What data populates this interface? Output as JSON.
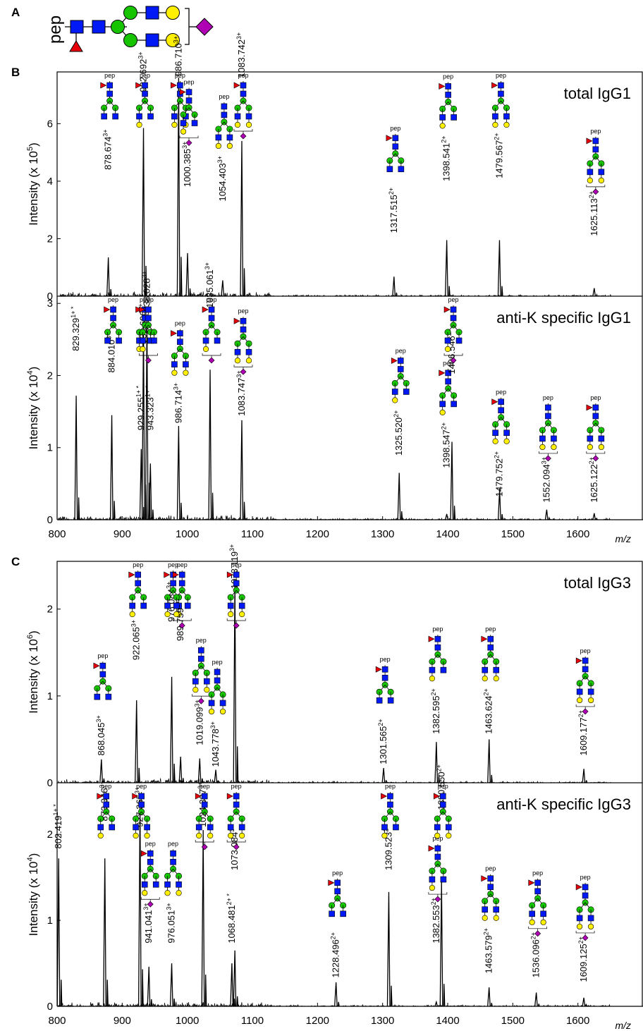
{
  "panel_letters": {
    "a": "A",
    "b": "B",
    "c": "C"
  },
  "legend_glycan": {
    "pep_label": "pep"
  },
  "colors": {
    "gn": "#0019f5",
    "man": "#17c400",
    "gal": "#ffef00",
    "fuc": "#e8000b",
    "sia": "#b000b5",
    "dash": "#3d8fd8",
    "line": "#000000"
  },
  "axes": {
    "x_label": "m/z",
    "pep": "pep"
  },
  "chart_data": [
    {
      "type": "line",
      "title": "total IgG1",
      "ylabel": "Intensity (x 10^5)",
      "ylabel_base": "Intensity (x 10",
      "ylabel_exp": "5",
      "ylabel_end": ")",
      "ylim": [
        0,
        7.8
      ],
      "yticks": [
        "0",
        "2",
        "4",
        "6"
      ],
      "xlim": [
        800,
        1700
      ],
      "xticks": [
        "800",
        "900",
        "1000",
        "1100",
        "1200",
        "1300",
        "1400",
        "1500",
        "1600"
      ],
      "peaks": [
        {
          "x": 878.674,
          "y": 1.35,
          "label": "878.674",
          "charge": "3+",
          "ly": 4.3,
          "glycan": "G0F"
        },
        {
          "x": 932.692,
          "y": 5.85,
          "label": "932.692",
          "charge": "3+",
          "ly": 7.0,
          "glycan": "G1F"
        },
        {
          "x": 986.71,
          "y": 7.6,
          "label": "986.710",
          "charge": "3+",
          "ly": 7.55,
          "glycan": "G2F"
        },
        {
          "x": 1000.385,
          "y": 1.5,
          "label": "1000.385",
          "charge": "3+",
          "ly": 3.7,
          "glycan": "G1FS"
        },
        {
          "x": 1054.403,
          "y": 0.55,
          "label": "1054.403",
          "charge": "3+",
          "ly": 3.2,
          "glycan": "G2"
        },
        {
          "x": 1083.742,
          "y": 5.4,
          "label": "1083.742",
          "charge": "3+",
          "ly": 7.5,
          "glycan": "G2FS"
        },
        {
          "x": 1317.515,
          "y": 0.68,
          "label": "1317.515",
          "charge": "2+",
          "ly": 2.1,
          "glycan": "G0F"
        },
        {
          "x": 1398.541,
          "y": 1.95,
          "label": "1398.541",
          "charge": "2+",
          "ly": 3.9,
          "glycan": "G1F"
        },
        {
          "x": 1479.567,
          "y": 1.95,
          "label": "1479.567",
          "charge": "2+",
          "ly": 4.0,
          "glycan": "G2F"
        },
        {
          "x": 1625.113,
          "y": 0.28,
          "label": "1625.113",
          "charge": "2+",
          "ly": 2.0,
          "glycan": "G2FS"
        }
      ]
    },
    {
      "type": "line",
      "title": "anti-K specific IgG1",
      "ylabel": "Intensity (x 10^4)",
      "ylabel_base": "Intensity (x 10",
      "ylabel_exp": "4",
      "ylabel_end": ")",
      "ylim": [
        0,
        3.1
      ],
      "yticks": [
        "0",
        "1",
        "2",
        "3"
      ],
      "xlim": [
        800,
        1700
      ],
      "xticks": [
        "800",
        "900",
        "1000",
        "1100",
        "1200",
        "1300",
        "1400",
        "1500",
        "1600"
      ],
      "peaks": [
        {
          "x": 829.329,
          "y": 1.72,
          "label": "829.329",
          "charge": "1+ *",
          "ly": 2.3,
          "glycan": ""
        },
        {
          "x": 884.01,
          "y": 1.45,
          "label": "884.010",
          "charge": "3+",
          "ly": 2.0,
          "glycan": "G0F"
        },
        {
          "x": 929.255,
          "y": 0.98,
          "label": "929.255",
          "charge": "1+ *",
          "ly": 1.2,
          "glycan": ""
        },
        {
          "x": 932.696,
          "y": 2.7,
          "label": "932.696",
          "charge": "3+",
          "ly": 2.4,
          "glycan": "G1F"
        },
        {
          "x": 938.028,
          "y": 2.85,
          "label": "938.028",
          "charge": "3+",
          "ly": 2.85,
          "glycan": "G1FS"
        },
        {
          "x": 943.323,
          "y": 0.78,
          "label": "943.323",
          "charge": "1+ *",
          "ly": 1.2,
          "glycan": ""
        },
        {
          "x": 986.714,
          "y": 1.3,
          "label": "986.714",
          "charge": "3+",
          "ly": 1.3,
          "glycan": "G2F"
        },
        {
          "x": 1035.061,
          "y": 2.08,
          "label": "1035.061",
          "charge": "3+",
          "ly": 2.9,
          "glycan": "G1FS2"
        },
        {
          "x": 1083.747,
          "y": 1.38,
          "label": "1083.747",
          "charge": "3+",
          "ly": 1.4,
          "glycan": "G2FS"
        },
        {
          "x": 1325.52,
          "y": 0.65,
          "label": "1325.520",
          "charge": "2+",
          "ly": 0.85,
          "glycan": "G1F"
        },
        {
          "x": 1398.547,
          "y": 0.08,
          "label": "1398.547",
          "charge": "2+",
          "ly": 0.68,
          "glycan": "G1F"
        },
        {
          "x": 1406.546,
          "y": 1.08,
          "label": "1406.546",
          "charge": "2+",
          "ly": 1.98,
          "glycan": "G1FS"
        },
        {
          "x": 1479.752,
          "y": 0.43,
          "label": "1479.752",
          "charge": "2+",
          "ly": 0.28,
          "glycan": "G2F"
        },
        {
          "x": 1552.094,
          "y": 0.14,
          "label": "1552.094",
          "charge": "3+",
          "ly": 0.2,
          "glycan": "G2S"
        },
        {
          "x": 1625.122,
          "y": 0.09,
          "label": "1625.122",
          "charge": "2+",
          "ly": 0.2,
          "glycan": "G2FS"
        }
      ]
    },
    {
      "type": "line",
      "title": "total IgG3",
      "ylabel": "Intensity (x 10^6)",
      "ylabel_base": "Intensity (x 10",
      "ylabel_exp": "6",
      "ylabel_end": ")",
      "ylim": [
        0,
        2.55
      ],
      "yticks": [
        "0",
        "1",
        "2"
      ],
      "xlim": [
        800,
        1700
      ],
      "xticks": [
        "800",
        "900",
        "1000",
        "1100",
        "1200",
        "1300",
        "1400",
        "1500",
        "1600"
      ],
      "peaks": [
        {
          "x": 868.045,
          "y": 0.27,
          "label": "868.045",
          "charge": "3+",
          "ly": 0.28,
          "glycan": "G0F"
        },
        {
          "x": 922.065,
          "y": 0.95,
          "label": "922.065",
          "charge": "3+",
          "ly": 1.38,
          "glycan": "G1F"
        },
        {
          "x": 976.084,
          "y": 1.22,
          "label": "976.084",
          "charge": "3+",
          "ly": 1.82,
          "glycan": "G2F"
        },
        {
          "x": 989.759,
          "y": 0.3,
          "label": "989.759",
          "charge": "3+",
          "ly": 1.6,
          "glycan": "G1FS"
        },
        {
          "x": 1019.099,
          "y": 0.28,
          "label": "1019.099",
          "charge": "3+",
          "ly": 0.4,
          "glycan": "G2S"
        },
        {
          "x": 1043.778,
          "y": 0.15,
          "label": "1043.778",
          "charge": "3+",
          "ly": 0.15,
          "glycan": "G2"
        },
        {
          "x": 1073.119,
          "y": 2.33,
          "label": "1073.119",
          "charge": "3+",
          "ly": 2.2,
          "glycan": "G2FS"
        },
        {
          "x": 1301.565,
          "y": 0.17,
          "label": "1301.565",
          "charge": "2+",
          "ly": 0.18,
          "glycan": "G0F"
        },
        {
          "x": 1382.595,
          "y": 0.47,
          "label": "1382.595",
          "charge": "2+",
          "ly": 0.53,
          "glycan": "G1F"
        },
        {
          "x": 1463.624,
          "y": 0.5,
          "label": "1463.624",
          "charge": "2+",
          "ly": 0.53,
          "glycan": "G2F"
        },
        {
          "x": 1609.177,
          "y": 0.16,
          "label": "1609.177",
          "charge": "2+",
          "ly": 0.28,
          "glycan": "G2FS"
        }
      ]
    },
    {
      "type": "line",
      "title": "anti-K specific IgG3",
      "ylabel": "Intensity (x 10^4)",
      "ylabel_base": "Intensity (x 10",
      "ylabel_exp": "4",
      "ylabel_end": ")",
      "ylim": [
        0,
        2.6
      ],
      "yticks": [
        "0",
        "1",
        "2"
      ],
      "xlim": [
        800,
        1700
      ],
      "xticks": [
        "800",
        "900",
        "1000",
        "1100",
        "1200",
        "1300",
        "1400",
        "1500",
        "1600"
      ],
      "peaks": [
        {
          "x": 802.419,
          "y": 1.72,
          "label": "802.419",
          "charge": "1+ *",
          "ly": 1.8,
          "glycan": ""
        },
        {
          "x": 873.346,
          "y": 1.72,
          "label": "873.346",
          "charge": "3+",
          "ly": 2.12,
          "glycan": "G1F"
        },
        {
          "x": 927.365,
          "y": 2.4,
          "label": "927.365",
          "charge": "3+",
          "ly": 2.05,
          "glycan": "G2F"
        },
        {
          "x": 941.041,
          "y": 0.46,
          "label": "941.041",
          "charge": "3+",
          "ly": 0.7,
          "glycan": "G1FS"
        },
        {
          "x": 976.051,
          "y": 0.5,
          "label": "976.051",
          "charge": "3+",
          "ly": 0.7,
          "glycan": "G2"
        },
        {
          "x": 1024.397,
          "y": 2.05,
          "label": "1024.397",
          "charge": "3+",
          "ly": 2.05,
          "glycan": "G2FS"
        },
        {
          "x": 1068.481,
          "y": 0.5,
          "label": "1068.481",
          "charge": "2+ *",
          "ly": 0.7,
          "glycan": ""
        },
        {
          "x": 1073.084,
          "y": 0.65,
          "label": "1073.084",
          "charge": "3+",
          "ly": 1.55,
          "glycan": "G2FS"
        },
        {
          "x": 1228.496,
          "y": 0.28,
          "label": "1228.496",
          "charge": "2+",
          "ly": 0.3,
          "glycan": "G0F"
        },
        {
          "x": 1309.523,
          "y": 1.33,
          "label": "1309.523",
          "charge": "2+",
          "ly": 1.55,
          "glycan": "G1F"
        },
        {
          "x": 1382.553,
          "y": 0.05,
          "label": "1382.553",
          "charge": "2+",
          "ly": 0.7,
          "glycan": "G1FS"
        },
        {
          "x": 1390.55,
          "y": 1.45,
          "label": "1390.550",
          "charge": "2+",
          "ly": 2.25,
          "glycan": "G2F"
        },
        {
          "x": 1463.579,
          "y": 0.22,
          "label": "1463.579",
          "charge": "2+",
          "ly": 0.35,
          "glycan": "G2F"
        },
        {
          "x": 1536.096,
          "y": 0.16,
          "label": "1536.096",
          "charge": "2+",
          "ly": 0.3,
          "glycan": "G2FS"
        },
        {
          "x": 1609.125,
          "y": 0.1,
          "label": "1609.125",
          "charge": "2+",
          "ly": 0.25,
          "glycan": "G2FS"
        }
      ]
    }
  ]
}
